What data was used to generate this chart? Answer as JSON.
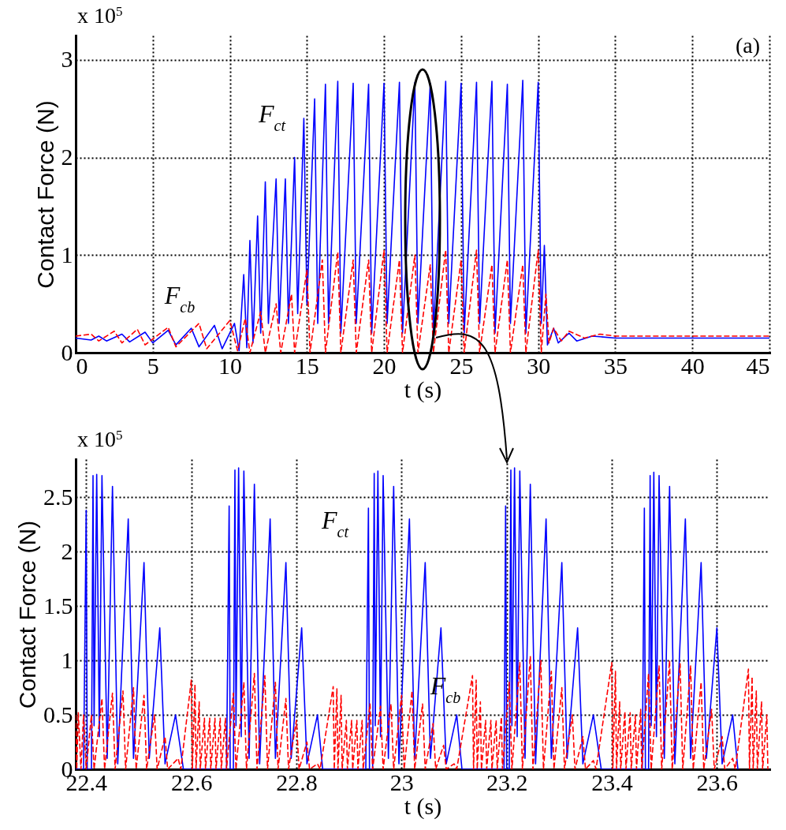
{
  "chart_data": [
    {
      "type": "line",
      "xlabel": "t (s)",
      "ylabel": "Contact Force (N)",
      "xlim": [
        0,
        45
      ],
      "xticks": [
        0,
        5,
        10,
        15,
        20,
        25,
        30,
        35,
        40,
        45
      ],
      "ylim": [
        0,
        3.25
      ],
      "yticks": [
        0,
        1,
        2,
        3
      ],
      "grid": true,
      "annotations": [
        "x 10$^{5}$",
        "(a)",
        "F$_{ct}$",
        "F$_{cb}$"
      ],
      "series": [
        {
          "color": "#0000ff",
          "line_style": "solid",
          "x": [
            0,
            1,
            1.5,
            2,
            3,
            3.5,
            4.5,
            5,
            6,
            6.5,
            7.5,
            8,
            9,
            9.5,
            10.3,
            10.6,
            10.9,
            11.1,
            11.3,
            11.5,
            11.8,
            12,
            12.3,
            12.5,
            13,
            13.2,
            13.6,
            13.8,
            14.2,
            14.4,
            14.8,
            15,
            15.5,
            15.7,
            16.2,
            16.4,
            17,
            17.2,
            18,
            18.2,
            19,
            19.2,
            20,
            20.2,
            21,
            21.2,
            22,
            22.2,
            23,
            23.2,
            24,
            24.2,
            25,
            25.2,
            26,
            26.2,
            27,
            27.2,
            28,
            28.2,
            29,
            29.2,
            30,
            30.2,
            30.4,
            30.6,
            31,
            31.3,
            32,
            32.5,
            33.5,
            35,
            45
          ],
          "values": [
            0.15,
            0.13,
            0.17,
            0.12,
            0.19,
            0.11,
            0.21,
            0.1,
            0.23,
            0.08,
            0.25,
            0.06,
            0.28,
            0.04,
            0.3,
            0.02,
            0.8,
            0.05,
            1.15,
            0.1,
            1.4,
            0.2,
            1.75,
            0.3,
            1.78,
            0.3,
            1.78,
            0.3,
            2.0,
            0.4,
            2.4,
            0.5,
            2.6,
            0.3,
            2.75,
            0.3,
            2.78,
            0.2,
            2.76,
            0.3,
            2.75,
            0.2,
            2.76,
            0.3,
            2.77,
            0.2,
            2.77,
            0.3,
            2.76,
            0.2,
            2.78,
            0.3,
            2.76,
            0.2,
            2.77,
            0.3,
            2.78,
            0.2,
            2.75,
            0.3,
            2.79,
            0.2,
            2.77,
            0.3,
            1.1,
            0.08,
            0.25,
            0.1,
            0.2,
            0.12,
            0.17,
            0.15,
            0.15
          ]
        },
        {
          "color": "#ff0000",
          "line_style": "dashed",
          "x": [
            0,
            1,
            1.5,
            2.5,
            3,
            4,
            4.5,
            6,
            6.5,
            8,
            8.5,
            10,
            10.5,
            11,
            11.3,
            12,
            12.3,
            13,
            13.3,
            14,
            14.2,
            15,
            15.2,
            16,
            16.2,
            17,
            17.2,
            18,
            18.2,
            19,
            19.2,
            20,
            20.2,
            21,
            21.2,
            22,
            22.2,
            23,
            23.2,
            24,
            24.2,
            25,
            25.2,
            26,
            26.2,
            27,
            27.2,
            28,
            28.2,
            29,
            29.2,
            30,
            30.2,
            30.5,
            30.7,
            31,
            31.5,
            32,
            33,
            34,
            35,
            45
          ],
          "values": [
            0.17,
            0.19,
            0.12,
            0.22,
            0.1,
            0.24,
            0.08,
            0.26,
            0.06,
            0.3,
            0.04,
            0.33,
            0.02,
            0.35,
            0,
            0.42,
            0,
            0.5,
            0,
            0.6,
            0,
            0.85,
            0,
            0.95,
            0,
            1.03,
            0,
            0.95,
            0,
            0.95,
            0,
            1.05,
            0,
            0.95,
            0,
            1.0,
            0,
            0.9,
            0,
            1.05,
            0,
            0.95,
            0,
            1.05,
            0,
            0.9,
            0,
            0.95,
            0,
            0.9,
            0,
            1.05,
            0,
            0.6,
            0.1,
            0.25,
            0.12,
            0.22,
            0.15,
            0.19,
            0.17,
            0.17
          ]
        }
      ]
    },
    {
      "type": "line",
      "xlabel": "t (s)",
      "ylabel": "Contact Force (N)",
      "xlim": [
        22.38,
        23.7
      ],
      "xticks": [
        22.4,
        22.6,
        22.8,
        23,
        23.2,
        23.4,
        23.6
      ],
      "ylim": [
        0,
        2.85
      ],
      "yticks": [
        0,
        0.5,
        1,
        1.5,
        2,
        2.5
      ],
      "grid": true,
      "annotations": [
        "x 10$^{5}$",
        "F$_{ct}$",
        "F$_{cb}$"
      ],
      "series": [
        {
          "color": "#0000ff",
          "line_style": "solid",
          "x": [
            22.38,
            22.395,
            22.4,
            22.402,
            22.41,
            22.413,
            22.415,
            22.42,
            22.425,
            22.43,
            22.44,
            22.45,
            22.46,
            22.48,
            22.49,
            22.51,
            22.52,
            22.54,
            22.55,
            22.57,
            22.585,
            22.667,
            22.672,
            22.674,
            22.68,
            22.683,
            22.685,
            22.69,
            22.695,
            22.7,
            22.71,
            22.72,
            22.73,
            22.75,
            22.76,
            22.78,
            22.79,
            22.81,
            22.82,
            22.84,
            22.85,
            22.932,
            22.937,
            22.939,
            22.945,
            22.948,
            22.95,
            22.955,
            22.96,
            22.965,
            22.975,
            22.985,
            22.995,
            23.015,
            23.025,
            23.045,
            23.055,
            23.075,
            23.085,
            23.105,
            23.115,
            23.195,
            23.198,
            23.2,
            23.205,
            23.208,
            23.21,
            23.215,
            23.22,
            23.225,
            23.235,
            23.245,
            23.255,
            23.275,
            23.285,
            23.305,
            23.315,
            23.335,
            23.345,
            23.365,
            23.38,
            23.458,
            23.462,
            23.464,
            23.47,
            23.473,
            23.475,
            23.48,
            23.485,
            23.49,
            23.5,
            23.51,
            23.52,
            23.54,
            23.55,
            23.57,
            23.58,
            23.6,
            23.61,
            23.63,
            23.64
          ],
          "values": [
            0,
            0,
            2.38,
            0,
            0,
            2.7,
            0.4,
            2.71,
            0.3,
            2.7,
            0.1,
            2.6,
            0.05,
            2.3,
            0.1,
            1.9,
            0.1,
            1.3,
            0.05,
            0.5,
            0,
            0,
            2.42,
            0,
            0,
            2.75,
            0.4,
            2.77,
            0.3,
            2.74,
            0.1,
            2.62,
            0.05,
            2.3,
            0.1,
            1.9,
            0.1,
            1.3,
            0.05,
            0.5,
            0,
            0,
            2.4,
            0,
            0,
            2.72,
            0.4,
            2.74,
            0.3,
            2.7,
            0.1,
            2.6,
            0.05,
            2.3,
            0.1,
            1.9,
            0.1,
            1.3,
            0.05,
            0.5,
            0,
            0,
            2.42,
            0,
            0,
            2.75,
            0.4,
            2.77,
            0.3,
            2.74,
            0.1,
            2.62,
            0.05,
            2.3,
            0.1,
            1.9,
            0.1,
            1.3,
            0.05,
            0.5,
            0,
            0,
            2.4,
            0,
            0,
            2.7,
            0.4,
            2.73,
            0.3,
            2.7,
            0.1,
            2.6,
            0.05,
            2.3,
            0.1,
            1.9,
            0.1,
            1.3,
            0.05,
            0.5,
            0
          ]
        },
        {
          "color": "#ff0000",
          "line_style": "dashed",
          "x": [
            22.38,
            22.382,
            22.385,
            22.39,
            22.395,
            22.4,
            22.41,
            22.415,
            22.43,
            22.435,
            22.45,
            22.455,
            22.47,
            22.475,
            22.49,
            22.495,
            22.51,
            22.515,
            22.53,
            22.535,
            22.55,
            22.555,
            22.575,
            22.58,
            22.6,
            22.602,
            22.607,
            22.609,
            22.615,
            22.617,
            22.625,
            22.627,
            22.635,
            22.637,
            22.645,
            22.647,
            22.655,
            22.657,
            22.665,
            22.667,
            22.68,
            22.685,
            22.7,
            22.705,
            22.72,
            22.725,
            22.74,
            22.745,
            22.76,
            22.765,
            22.78,
            22.785,
            22.8,
            22.805,
            22.82,
            22.825,
            22.84,
            22.845,
            22.87,
            22.872,
            22.877,
            22.879,
            22.885,
            22.887,
            22.895,
            22.897,
            22.905,
            22.907,
            22.915,
            22.917,
            22.925,
            22.927,
            22.94,
            22.945,
            22.96,
            22.965,
            22.98,
            22.985,
            23,
            23.005,
            23.02,
            23.025,
            23.04,
            23.045,
            23.06,
            23.065,
            23.08,
            23.085,
            23.1,
            23.105,
            23.135,
            23.137,
            23.142,
            23.144,
            23.15,
            23.152,
            23.16,
            23.162,
            23.17,
            23.172,
            23.18,
            23.182,
            23.19,
            23.192,
            23.205,
            23.21,
            23.225,
            23.23,
            23.245,
            23.25,
            23.265,
            23.27,
            23.285,
            23.29,
            23.305,
            23.31,
            23.325,
            23.33,
            23.345,
            23.35,
            23.365,
            23.37,
            23.4,
            23.402,
            23.407,
            23.409,
            23.415,
            23.417,
            23.425,
            23.427,
            23.435,
            23.437,
            23.445,
            23.447,
            23.455,
            23.457,
            23.47,
            23.475,
            23.49,
            23.495,
            23.51,
            23.515,
            23.53,
            23.535,
            23.55,
            23.555,
            23.57,
            23.575,
            23.59,
            23.595,
            23.61,
            23.615,
            23.63,
            23.635,
            23.66,
            23.662,
            23.667,
            23.669,
            23.675,
            23.677,
            23.685,
            23.687,
            23.695,
            23.697
          ],
          "values": [
            0.5,
            0,
            0.52,
            0,
            0.5,
            0,
            0.5,
            0,
            0.65,
            0,
            0.7,
            0,
            0.72,
            0,
            0.75,
            0,
            0.68,
            0,
            0.5,
            0,
            0.3,
            0,
            0.1,
            0,
            0.82,
            0,
            0.78,
            0,
            0.62,
            0,
            0.47,
            0,
            0.47,
            0,
            0.47,
            0,
            0.47,
            0,
            0.47,
            0,
            0.7,
            0,
            0.8,
            0,
            0.88,
            0,
            0.86,
            0,
            0.8,
            0,
            0.65,
            0,
            0.45,
            0,
            0.25,
            0,
            0.05,
            0,
            0.76,
            0,
            0.74,
            0,
            0.68,
            0,
            0.45,
            0,
            0.45,
            0,
            0.45,
            0,
            0.45,
            0,
            0.6,
            0,
            0.58,
            0,
            0.6,
            0,
            0.68,
            0,
            0.72,
            0,
            0.6,
            0,
            0.42,
            0,
            0.22,
            0,
            0.05,
            0,
            0.86,
            0,
            0.82,
            0,
            0.62,
            0,
            0.45,
            0,
            0.45,
            0,
            0.45,
            0,
            0.48,
            0,
            0.8,
            0,
            0.98,
            0,
            1.04,
            0,
            1.0,
            0,
            0.9,
            0,
            0.75,
            0,
            0.5,
            0,
            0.3,
            0,
            0.08,
            0,
            0.98,
            0,
            0.9,
            0,
            0.62,
            0,
            0.53,
            0,
            0.52,
            0,
            0.5,
            0,
            0.55,
            0,
            0.88,
            0,
            0.95,
            0,
            1.0,
            0,
            0.97,
            0,
            0.95,
            0,
            0.8,
            0,
            0.55,
            0,
            0.3,
            0,
            0.1,
            0,
            0.92,
            0,
            0.85,
            0,
            0.72,
            0,
            0.62,
            0,
            0.5,
            0
          ]
        }
      ]
    }
  ]
}
